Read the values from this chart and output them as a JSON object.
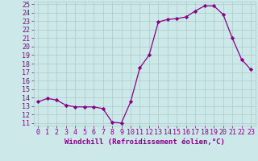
{
  "x": [
    0,
    1,
    2,
    3,
    4,
    5,
    6,
    7,
    8,
    9,
    10,
    11,
    12,
    13,
    14,
    15,
    16,
    17,
    18,
    19,
    20,
    21,
    22,
    23
  ],
  "y": [
    13.5,
    13.9,
    13.7,
    13.1,
    12.9,
    12.9,
    12.9,
    12.7,
    11.1,
    11.0,
    13.5,
    17.5,
    19.0,
    22.9,
    23.2,
    23.3,
    23.5,
    24.2,
    24.8,
    24.8,
    23.8,
    21.0,
    18.5,
    17.3
  ],
  "line_color": "#880088",
  "marker": "D",
  "marker_size": 2.2,
  "bg_color": "#cce8e8",
  "grid_color": "#aacccc",
  "xlabel": "Windchill (Refroidissement éolien,°C)",
  "xlabel_color": "#880088",
  "xlabel_fontsize": 6.5,
  "xtick_labels": [
    "0",
    "1",
    "2",
    "3",
    "4",
    "5",
    "6",
    "7",
    "8",
    "9",
    "10",
    "11",
    "12",
    "13",
    "14",
    "15",
    "16",
    "17",
    "18",
    "19",
    "20",
    "21",
    "22",
    "23"
  ],
  "ytick_min": 11,
  "ytick_max": 25,
  "tick_color": "#880088",
  "tick_fontsize": 6.0,
  "linewidth": 0.9
}
